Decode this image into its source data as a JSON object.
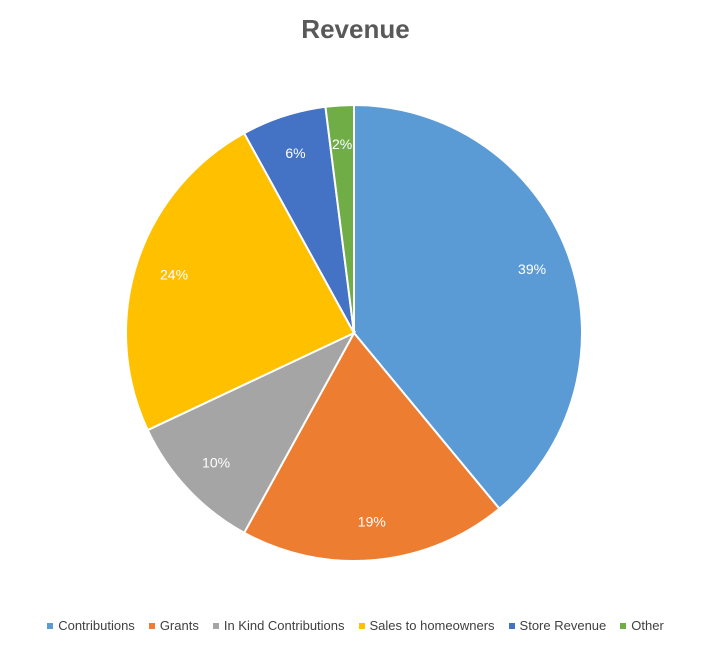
{
  "chart_data": {
    "type": "pie",
    "title": "Revenue",
    "categories": [
      "Contributions",
      "Grants",
      "In Kind Contributions",
      "Sales to homeowners",
      "Store Revenue",
      "Other"
    ],
    "values": [
      39,
      19,
      10,
      24,
      6,
      2
    ],
    "data_labels": [
      "39%",
      "19%",
      "10%",
      "24%",
      "6%",
      "2%"
    ],
    "colors": [
      "#5B9BD5",
      "#ED7D31",
      "#A5A5A5",
      "#FFC000",
      "#4472C4",
      "#70AD47"
    ],
    "legend_position": "bottom",
    "start_angle_deg": 0,
    "direction": "clockwise"
  }
}
